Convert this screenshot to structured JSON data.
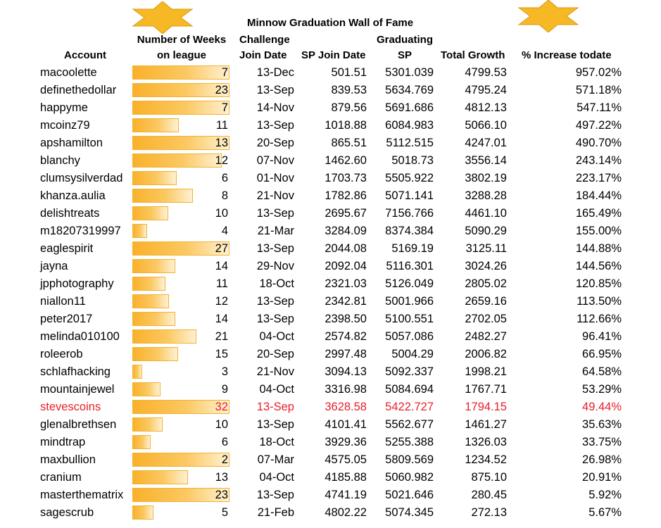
{
  "title": "Minnow Graduation Wall of Fame",
  "headers": {
    "account": "Account",
    "weeks_line1": "Number of Weeks",
    "weeks_line2": "on league",
    "join_line1": "Challenge",
    "join_line2": "Join Date",
    "sp_join": "SP Join Date",
    "grad_line1": "Graduating",
    "grad_line2": "SP",
    "total_growth": "Total Growth",
    "pct_increase": "% Increase todate"
  },
  "max_weeks": 32,
  "colors": {
    "star": "#f7b825",
    "bar": "#f9b12a",
    "highlight_text": "#e8202a"
  },
  "rows": [
    {
      "account": "macoolette",
      "weeks": 7,
      "join": "13-Dec",
      "sp_join": "501.51",
      "grad_sp": "5301.039",
      "growth": "4799.53",
      "pct": "957.02%",
      "bar": 1.0
    },
    {
      "account": "definethedollar",
      "weeks": 23,
      "join": "13-Sep",
      "sp_join": "839.53",
      "grad_sp": "5634.769",
      "growth": "4795.24",
      "pct": "571.18%",
      "bar": 1.0
    },
    {
      "account": "happyme",
      "weeks": 7,
      "join": "14-Nov",
      "sp_join": "879.56",
      "grad_sp": "5691.686",
      "growth": "4812.13",
      "pct": "547.11%",
      "bar": 1.0
    },
    {
      "account": "mcoinz79",
      "weeks": 11,
      "join": "13-Sep",
      "sp_join": "1018.88",
      "grad_sp": "6084.983",
      "growth": "5066.10",
      "pct": "497.22%",
      "bar": 0.48
    },
    {
      "account": "apshamilton",
      "weeks": 13,
      "join": "20-Sep",
      "sp_join": "865.51",
      "grad_sp": "5112.515",
      "growth": "4247.01",
      "pct": "490.70%",
      "bar": 1.0
    },
    {
      "account": "blanchy",
      "weeks": 12,
      "join": "07-Nov",
      "sp_join": "1462.60",
      "grad_sp": "5018.73",
      "growth": "3556.14",
      "pct": "243.14%",
      "bar": 0.92
    },
    {
      "account": "clumsysilverdad",
      "weeks": 6,
      "join": "01-Nov",
      "sp_join": "1703.73",
      "grad_sp": "5505.922",
      "growth": "3802.19",
      "pct": "223.17%",
      "bar": 0.46
    },
    {
      "account": "khanza.aulia",
      "weeks": 8,
      "join": "21-Nov",
      "sp_join": "1782.86",
      "grad_sp": "5071.141",
      "growth": "3288.28",
      "pct": "184.44%",
      "bar": 0.62
    },
    {
      "account": "delishtreats",
      "weeks": 10,
      "join": "13-Sep",
      "sp_join": "2695.67",
      "grad_sp": "7156.766",
      "growth": "4461.10",
      "pct": "165.49%",
      "bar": 0.37
    },
    {
      "account": "m18207319997",
      "weeks": 4,
      "join": "21-Mar",
      "sp_join": "3284.09",
      "grad_sp": "8374.384",
      "growth": "5090.29",
      "pct": "155.00%",
      "bar": 0.15
    },
    {
      "account": "eaglespirit",
      "weeks": 27,
      "join": "13-Sep",
      "sp_join": "2044.08",
      "grad_sp": "5169.19",
      "growth": "3125.11",
      "pct": "144.88%",
      "bar": 1.0
    },
    {
      "account": "jayna",
      "weeks": 14,
      "join": "29-Nov",
      "sp_join": "2092.04",
      "grad_sp": "5116.301",
      "growth": "3024.26",
      "pct": "144.56%",
      "bar": 0.44
    },
    {
      "account": "jpphotography",
      "weeks": 11,
      "join": "18-Oct",
      "sp_join": "2321.03",
      "grad_sp": "5126.049",
      "growth": "2805.02",
      "pct": "120.85%",
      "bar": 0.34
    },
    {
      "account": "niallon11",
      "weeks": 12,
      "join": "13-Sep",
      "sp_join": "2342.81",
      "grad_sp": "5001.966",
      "growth": "2659.16",
      "pct": "113.50%",
      "bar": 0.38
    },
    {
      "account": "peter2017",
      "weeks": 14,
      "join": "13-Sep",
      "sp_join": "2398.50",
      "grad_sp": "5100.551",
      "growth": "2702.05",
      "pct": "112.66%",
      "bar": 0.44
    },
    {
      "account": "melinda010100",
      "weeks": 21,
      "join": "04-Oct",
      "sp_join": "2574.82",
      "grad_sp": "5057.086",
      "growth": "2482.27",
      "pct": "96.41%",
      "bar": 0.66
    },
    {
      "account": "roleerob",
      "weeks": 15,
      "join": "20-Sep",
      "sp_join": "2997.48",
      "grad_sp": "5004.29",
      "growth": "2006.82",
      "pct": "66.95%",
      "bar": 0.47
    },
    {
      "account": "schlafhacking",
      "weeks": 3,
      "join": "21-Nov",
      "sp_join": "3094.13",
      "grad_sp": "5092.337",
      "growth": "1998.21",
      "pct": "64.58%",
      "bar": 0.1
    },
    {
      "account": "mountainjewel",
      "weeks": 9,
      "join": "04-Oct",
      "sp_join": "3316.98",
      "grad_sp": "5084.694",
      "growth": "1767.71",
      "pct": "53.29%",
      "bar": 0.29
    },
    {
      "account": "stevescoins",
      "weeks": 32,
      "join": "13-Sep",
      "sp_join": "3628.58",
      "grad_sp": "5422.727",
      "growth": "1794.15",
      "pct": "49.44%",
      "bar": 1.0,
      "highlight": true
    },
    {
      "account": "glenalbrethsen",
      "weeks": 10,
      "join": "13-Sep",
      "sp_join": "4101.41",
      "grad_sp": "5562.677",
      "growth": "1461.27",
      "pct": "35.63%",
      "bar": 0.31
    },
    {
      "account": "mindtrap",
      "weeks": 6,
      "join": "18-Oct",
      "sp_join": "3929.36",
      "grad_sp": "5255.388",
      "growth": "1326.03",
      "pct": "33.75%",
      "bar": 0.19
    },
    {
      "account": "maxbullion",
      "weeks": 2,
      "join": "07-Mar",
      "sp_join": "4575.05",
      "grad_sp": "5809.569",
      "growth": "1234.52",
      "pct": "26.98%",
      "bar": 1.0
    },
    {
      "account": "cranium",
      "weeks": 13,
      "join": "04-Oct",
      "sp_join": "4185.88",
      "grad_sp": "5060.982",
      "growth": "875.10",
      "pct": "20.91%",
      "bar": 0.57
    },
    {
      "account": "masterthematrix",
      "weeks": 23,
      "join": "13-Sep",
      "sp_join": "4741.19",
      "grad_sp": "5021.646",
      "growth": "280.45",
      "pct": "5.92%",
      "bar": 1.0
    },
    {
      "account": "sagescrub",
      "weeks": 5,
      "join": "21-Feb",
      "sp_join": "4802.22",
      "grad_sp": "5074.345",
      "growth": "272.13",
      "pct": "5.67%",
      "bar": 0.22
    }
  ]
}
